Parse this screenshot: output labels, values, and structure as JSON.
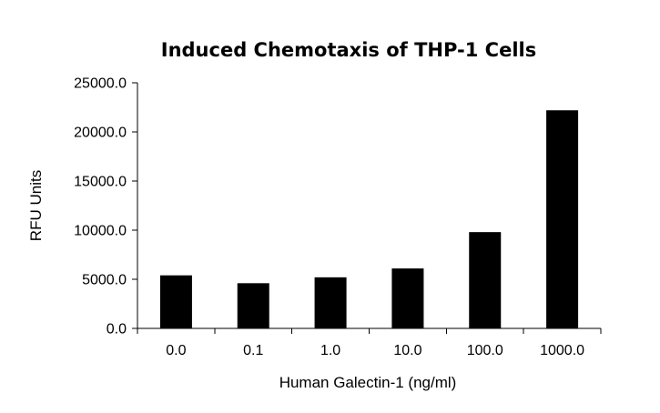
{
  "chart_data": {
    "type": "bar",
    "title": "Induced Chemotaxis of THP-1 Cells",
    "xlabel": "Human Galectin-1 (ng/ml)",
    "ylabel": "RFU Units",
    "categories": [
      "0.0",
      "0.1",
      "1.0",
      "10.0",
      "100.0",
      "1000.0"
    ],
    "values": [
      5400,
      4600,
      5200,
      6100,
      9800,
      22200
    ],
    "ylim": [
      0,
      25000
    ],
    "yticks": [
      "0.0",
      "5000.0",
      "10000.0",
      "15000.0",
      "20000.0",
      "25000.0"
    ],
    "grid": false,
    "bar_color": "#000000"
  }
}
